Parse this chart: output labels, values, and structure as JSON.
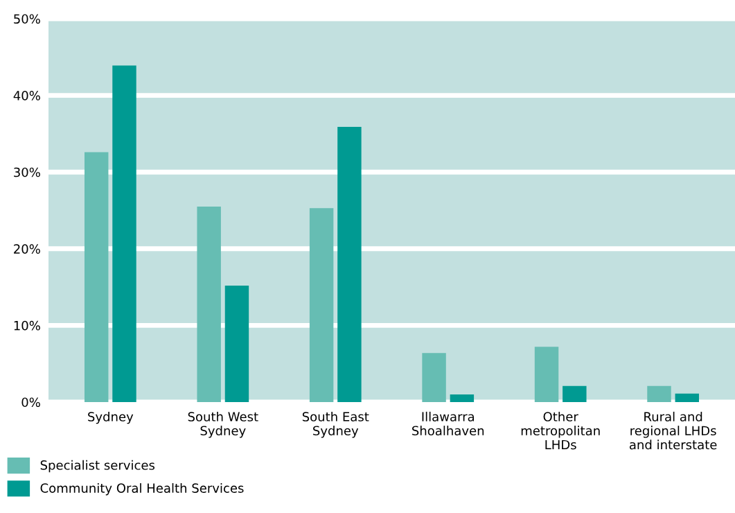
{
  "chart_data": {
    "type": "bar",
    "categories": [
      "Sydney",
      "South West\nSydney",
      "South East\nSydney",
      "Illawarra\nShoalhaven",
      "Other\nmetropolitan\nLHDs",
      "Rural and\nregional LHDs\nand interstate"
    ],
    "series": [
      {
        "name": "Specialist services",
        "color": "#66bdb3",
        "values": [
          32.6,
          25.5,
          25.3,
          6.4,
          7.2,
          2.1
        ]
      },
      {
        "name": "Community Oral Health Services",
        "color": "#009a92",
        "values": [
          43.9,
          15.2,
          35.9,
          1.0,
          2.1,
          1.1
        ]
      }
    ],
    "ylim": [
      0,
      50
    ],
    "yticks": [
      {
        "value": 0,
        "label": "0%"
      },
      {
        "value": 10,
        "label": "10%"
      },
      {
        "value": 20,
        "label": "20%"
      },
      {
        "value": 30,
        "label": "30%"
      },
      {
        "value": 40,
        "label": "40%"
      },
      {
        "value": 50,
        "label": "50%"
      }
    ],
    "grid": "y",
    "legend": "bottom left"
  }
}
